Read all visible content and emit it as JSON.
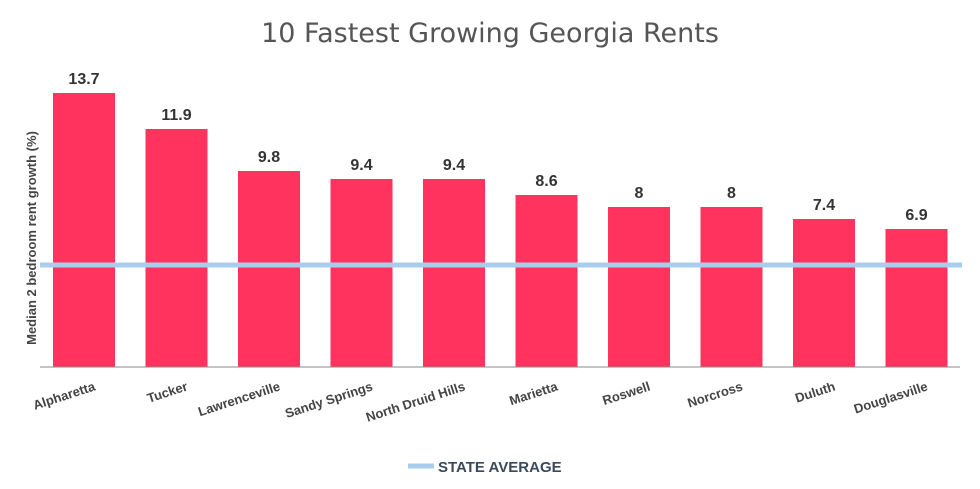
{
  "chart_data": {
    "type": "bar",
    "title": "10 Fastest Growing Georgia Rents",
    "ylabel": "Median 2 bedroom rent growth (%)",
    "xlabel": "",
    "categories": [
      "Alpharetta",
      "Tucker",
      "Lawrenceville",
      "Sandy Springs",
      "North Druid Hills",
      "Marietta",
      "Roswell",
      "Norcross",
      "Duluth",
      "Douglasville"
    ],
    "values": [
      13.7,
      11.9,
      9.8,
      9.4,
      9.4,
      8.6,
      8,
      8,
      7.4,
      6.9
    ],
    "value_labels": [
      "13.7",
      "11.9",
      "9.8",
      "9.4",
      "9.4",
      "8.6",
      "8",
      "8",
      "7.4",
      "6.9"
    ],
    "ylim": [
      0,
      14
    ],
    "reference_line": {
      "label": "STATE AVERAGE",
      "value": 5.1
    },
    "grid": false,
    "legend": "bottom-center",
    "colors": {
      "bar": "#ff335e",
      "reference": "#a9cdec",
      "axis": "#888888"
    }
  }
}
